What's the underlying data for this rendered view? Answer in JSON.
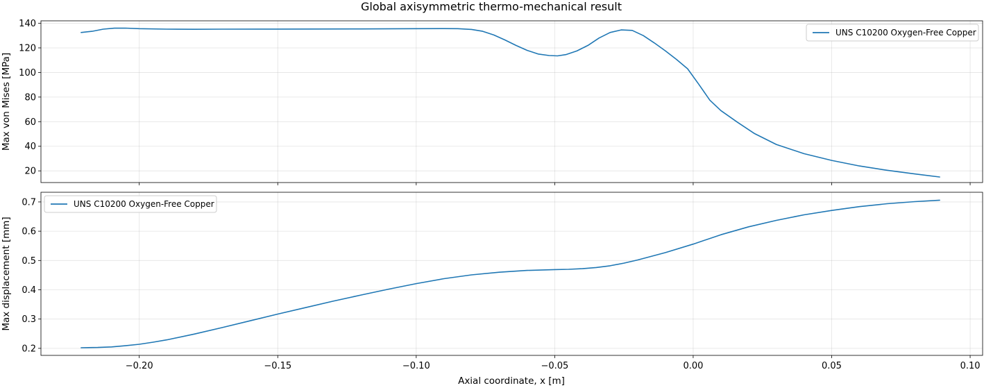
{
  "figure": {
    "title": "Global axisymmetric thermo-mechanical result",
    "xlabel": "Axial coordinate, x [m]",
    "series_color": "#1f77b4"
  },
  "chart_data": [
    {
      "type": "line",
      "ylabel": "Max von Mises [MPa]",
      "xlim": [
        -0.2355,
        0.1045
      ],
      "ylim": [
        10.5,
        142
      ],
      "yticks": [
        20,
        40,
        60,
        80,
        100,
        120,
        140
      ],
      "xticks": [
        -0.2,
        -0.15,
        -0.1,
        -0.05,
        0.0,
        0.05,
        0.1
      ],
      "show_xtick_labels": false,
      "grid": true,
      "legend_position": "upper right",
      "series": [
        {
          "name": "UNS C10200 Oxygen-Free Copper",
          "x": [
            -0.221,
            -0.217,
            -0.213,
            -0.209,
            -0.205,
            -0.2,
            -0.19,
            -0.18,
            -0.17,
            -0.15,
            -0.12,
            -0.1,
            -0.09,
            -0.085,
            -0.08,
            -0.076,
            -0.072,
            -0.068,
            -0.064,
            -0.06,
            -0.056,
            -0.052,
            -0.049,
            -0.046,
            -0.042,
            -0.038,
            -0.034,
            -0.03,
            -0.026,
            -0.022,
            -0.018,
            -0.014,
            -0.01,
            -0.006,
            -0.002,
            0.002,
            0.006,
            0.01,
            0.016,
            0.022,
            0.03,
            0.04,
            0.05,
            0.06,
            0.07,
            0.08,
            0.089
          ],
          "y": [
            132.5,
            133.5,
            135.2,
            136.0,
            136.1,
            135.6,
            135.2,
            135.1,
            135.2,
            135.3,
            135.4,
            135.6,
            135.7,
            135.6,
            135.0,
            133.5,
            130.5,
            126.5,
            122.0,
            118.0,
            115.0,
            113.8,
            113.5,
            114.5,
            117.5,
            122.0,
            128.0,
            132.5,
            134.6,
            134.2,
            130.0,
            124.0,
            117.5,
            110.5,
            103.0,
            90.5,
            77.5,
            69.0,
            59.5,
            50.5,
            41.5,
            34.0,
            28.5,
            24.0,
            20.5,
            17.5,
            15.0
          ]
        }
      ]
    },
    {
      "type": "line",
      "ylabel": "Max displacement [mm]",
      "xlim": [
        -0.2355,
        0.1045
      ],
      "ylim": [
        0.176,
        0.733
      ],
      "yticks": [
        0.2,
        0.3,
        0.4,
        0.5,
        0.6,
        0.7
      ],
      "xticks": [
        -0.2,
        -0.15,
        -0.1,
        -0.05,
        0.0,
        0.05,
        0.1
      ],
      "xtick_labels": [
        "−0.20",
        "−0.15",
        "−0.10",
        "−0.05",
        "0.00",
        "0.05",
        "0.10"
      ],
      "grid": true,
      "legend_position": "upper left",
      "series": [
        {
          "name": "UNS C10200 Oxygen-Free Copper",
          "x": [
            -0.221,
            -0.215,
            -0.21,
            -0.205,
            -0.2,
            -0.195,
            -0.19,
            -0.18,
            -0.17,
            -0.16,
            -0.15,
            -0.14,
            -0.13,
            -0.12,
            -0.11,
            -0.1,
            -0.09,
            -0.08,
            -0.07,
            -0.06,
            -0.05,
            -0.045,
            -0.04,
            -0.035,
            -0.03,
            -0.025,
            -0.02,
            -0.01,
            0.0,
            0.01,
            0.02,
            0.03,
            0.04,
            0.05,
            0.06,
            0.07,
            0.08,
            0.089
          ],
          "y": [
            0.202,
            0.203,
            0.205,
            0.209,
            0.214,
            0.221,
            0.229,
            0.249,
            0.271,
            0.294,
            0.317,
            0.339,
            0.361,
            0.382,
            0.402,
            0.421,
            0.438,
            0.451,
            0.46,
            0.466,
            0.469,
            0.47,
            0.472,
            0.476,
            0.482,
            0.491,
            0.502,
            0.527,
            0.556,
            0.588,
            0.615,
            0.637,
            0.656,
            0.671,
            0.684,
            0.694,
            0.701,
            0.706
          ]
        }
      ]
    }
  ]
}
